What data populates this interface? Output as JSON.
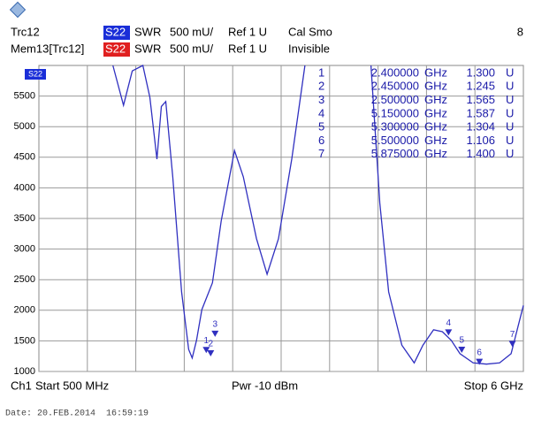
{
  "header": {
    "rows": [
      {
        "trace": "Trc12",
        "param": "S22",
        "format": "SWR",
        "scale": "500 mU/",
        "ref": "Ref 1 U",
        "status": "Cal Smo"
      },
      {
        "trace": "Mem13[Trc12]",
        "param": "S22",
        "format": "SWR",
        "scale": "500 mU/",
        "ref": "Ref 1 U",
        "status": "Invisible"
      }
    ],
    "window": "8"
  },
  "chart_data": {
    "type": "line",
    "trace_label": "S22",
    "xlim": [
      0.5,
      6
    ],
    "ylim": [
      1000,
      6000
    ],
    "yticks": [
      1000,
      1500,
      2000,
      2500,
      3000,
      3500,
      4000,
      4500,
      5000,
      5500
    ],
    "grid": true,
    "x": [
      1.34,
      1.46,
      1.56,
      1.68,
      1.76,
      1.84,
      1.89,
      1.94,
      2.02,
      2.12,
      2.2,
      2.24,
      2.29,
      2.35,
      2.47,
      2.57,
      2.72,
      2.82,
      2.97,
      3.09,
      3.22,
      3.37,
      3.52,
      3.9,
      4.27,
      4.37,
      4.47,
      4.62,
      4.76,
      4.86,
      4.98,
      5.08,
      5.18,
      5.28,
      5.43,
      5.58,
      5.73,
      5.86,
      6.0
    ],
    "series": [
      {
        "color": "#3030c0",
        "values": [
          6000,
          5350,
          5910,
          6000,
          5480,
          4470,
          5330,
          5410,
          4180,
          2300,
          1360,
          1220,
          1510,
          2010,
          2450,
          3460,
          4610,
          4180,
          3170,
          2590,
          3170,
          4470,
          6000,
          null,
          6000,
          3750,
          2300,
          1430,
          1140,
          1430,
          1680,
          1650,
          1510,
          1290,
          1140,
          1120,
          1140,
          1290,
          2080
        ]
      }
    ],
    "marker_x_unit": "GHz",
    "marker_y_unit": "U",
    "markers": [
      {
        "label": "1",
        "x": 2.4,
        "x_label": "2.400000",
        "value": 1300,
        "value_label": "1.300"
      },
      {
        "label": "2",
        "x": 2.45,
        "x_label": "2.450000",
        "value": 1245,
        "value_label": "1.245"
      },
      {
        "label": "3",
        "x": 2.5,
        "x_label": "2.500000",
        "value": 1565,
        "value_label": "1.565"
      },
      {
        "label": "4",
        "x": 5.15,
        "x_label": "5.150000",
        "value": 1587,
        "value_label": "1.587"
      },
      {
        "label": "5",
        "x": 5.3,
        "x_label": "5.300000",
        "value": 1304,
        "value_label": "1.304"
      },
      {
        "label": "6",
        "x": 5.5,
        "x_label": "5.500000",
        "value": 1106,
        "value_label": "1.106"
      },
      {
        "label": "7",
        "x": 5.875,
        "x_label": "5.875000",
        "value": 1400,
        "value_label": "1.400"
      }
    ]
  },
  "footer": {
    "channel": "Ch1",
    "start": "Start 500 MHz",
    "power": "Pwr -10 dBm",
    "stop": "Stop 6 GHz"
  },
  "date": "Date: 20.FEB.2014  16:59:19"
}
